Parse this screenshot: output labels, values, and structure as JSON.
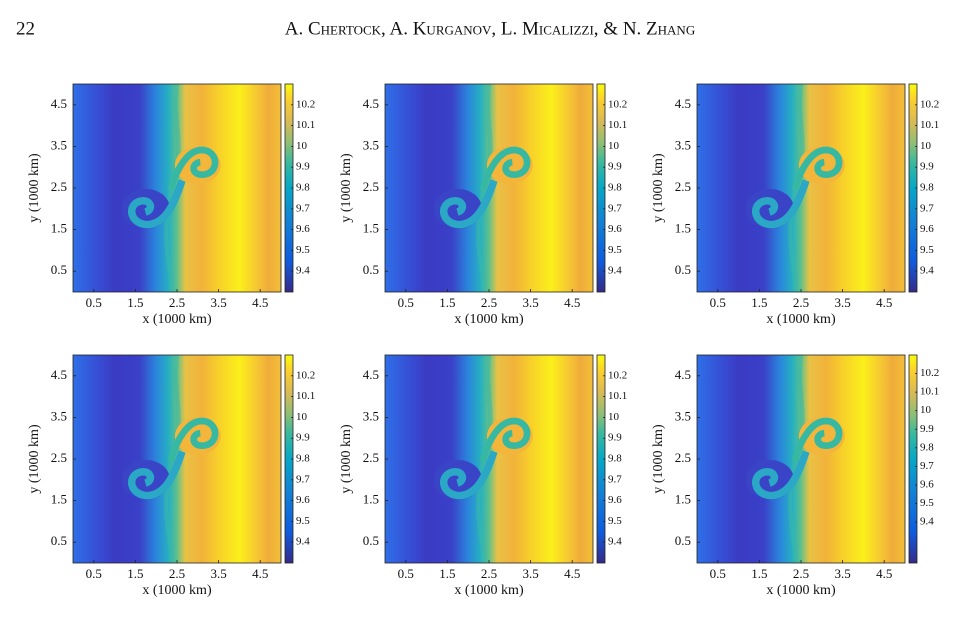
{
  "header": {
    "page_number": "22",
    "authors": "A. Chertock, A. Kurganov, L. Micalizzi, & N. Zhang"
  },
  "figure": {
    "panels": [
      {
        "xlabel": "x (1000 km)",
        "ylabel": "y (1000 km)",
        "xlim": [
          0,
          5
        ],
        "ylim": [
          0,
          5
        ],
        "xticks": [
          0.5,
          1.5,
          2.5,
          3.5,
          4.5
        ],
        "yticks": [
          0.5,
          1.5,
          2.5,
          3.5,
          4.5
        ],
        "clim": [
          9.3,
          10.3
        ],
        "cticks": [
          9.4,
          9.5,
          9.6,
          9.7,
          9.8,
          9.9,
          10,
          10.1,
          10.2
        ]
      },
      {
        "xlabel": "x (1000 km)",
        "ylabel": "y (1000 km)",
        "xlim": [
          0,
          5
        ],
        "ylim": [
          0,
          5
        ],
        "xticks": [
          0.5,
          1.5,
          2.5,
          3.5,
          4.5
        ],
        "yticks": [
          0.5,
          1.5,
          2.5,
          3.5,
          4.5
        ],
        "clim": [
          9.3,
          10.3
        ],
        "cticks": [
          9.4,
          9.5,
          9.6,
          9.7,
          9.8,
          9.9,
          10,
          10.1,
          10.2
        ]
      },
      {
        "xlabel": "x (1000 km)",
        "ylabel": "y (1000 km)",
        "xlim": [
          0,
          5
        ],
        "ylim": [
          0,
          5
        ],
        "xticks": [
          0.5,
          1.5,
          2.5,
          3.5,
          4.5
        ],
        "yticks": [
          0.5,
          1.5,
          2.5,
          3.5,
          4.5
        ],
        "clim": [
          9.3,
          10.3
        ],
        "cticks": [
          9.4,
          9.5,
          9.6,
          9.7,
          9.8,
          9.9,
          10,
          10.1,
          10.2
        ]
      },
      {
        "xlabel": "x (1000 km)",
        "ylabel": "y (1000 km)",
        "xlim": [
          0,
          5
        ],
        "ylim": [
          0,
          5
        ],
        "xticks": [
          0.5,
          1.5,
          2.5,
          3.5,
          4.5
        ],
        "yticks": [
          0.5,
          1.5,
          2.5,
          3.5,
          4.5
        ],
        "clim": [
          9.3,
          10.3
        ],
        "cticks": [
          9.4,
          9.5,
          9.6,
          9.7,
          9.8,
          9.9,
          10,
          10.1,
          10.2
        ]
      },
      {
        "xlabel": "x (1000 km)",
        "ylabel": "y (1000 km)",
        "xlim": [
          0,
          5
        ],
        "ylim": [
          0,
          5
        ],
        "xticks": [
          0.5,
          1.5,
          2.5,
          3.5,
          4.5
        ],
        "yticks": [
          0.5,
          1.5,
          2.5,
          3.5,
          4.5
        ],
        "clim": [
          9.3,
          10.3
        ],
        "cticks": [
          9.4,
          9.5,
          9.6,
          9.7,
          9.8,
          9.9,
          10,
          10.1,
          10.2
        ]
      },
      {
        "xlabel": "x (1000 km)",
        "ylabel": "y (1000 km)",
        "xlim": [
          0,
          5
        ],
        "ylim": [
          0,
          5
        ],
        "xticks": [
          0.5,
          1.5,
          2.5,
          3.5,
          4.5
        ],
        "yticks": [
          0.5,
          1.5,
          2.5,
          3.5,
          4.5
        ],
        "clim": [
          9.18,
          10.3
        ],
        "cticks": [
          9.4,
          9.5,
          9.6,
          9.7,
          9.8,
          9.9,
          10,
          10.1,
          10.2
        ]
      }
    ]
  }
}
